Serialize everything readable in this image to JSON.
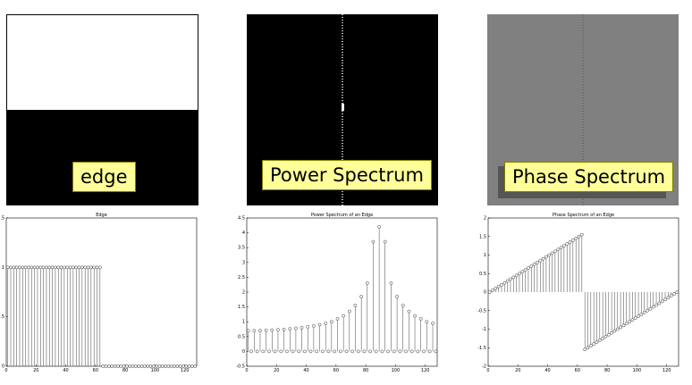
{
  "images": [
    {
      "label": "edge"
    },
    {
      "label": "Power Spectrum"
    },
    {
      "label": "Phase Spectrum"
    }
  ],
  "chart_data": [
    {
      "type": "stem",
      "title": "Edge",
      "xlim": [
        0,
        128
      ],
      "ylim": [
        0,
        1.5
      ],
      "xticks": [
        "0",
        "20",
        "40",
        "60",
        "80",
        "100",
        "120"
      ],
      "yticks": [
        "0",
        "0.5",
        "1",
        "1.5"
      ],
      "x_start": 1,
      "x_step": 2,
      "n": 64,
      "values": [
        1,
        1,
        1,
        1,
        1,
        1,
        1,
        1,
        1,
        1,
        1,
        1,
        1,
        1,
        1,
        1,
        1,
        1,
        1,
        1,
        1,
        1,
        1,
        1,
        1,
        1,
        1,
        1,
        1,
        1,
        1,
        1,
        0,
        0,
        0,
        0,
        0,
        0,
        0,
        0,
        0,
        0,
        0,
        0,
        0,
        0,
        0,
        0,
        0,
        0,
        0,
        0,
        0,
        0,
        0,
        0,
        0,
        0,
        0,
        0,
        0,
        0,
        0,
        0
      ]
    },
    {
      "type": "stem",
      "title": "Power Spectrum of an Edge",
      "xlim": [
        0,
        128
      ],
      "ylim": [
        -0.5,
        4.5
      ],
      "xticks": [
        "0",
        "20",
        "40",
        "60",
        "80",
        "100",
        "120"
      ],
      "yticks": [
        "-0.5",
        "0",
        "0.5",
        "1",
        "1.5",
        "2",
        "2.5",
        "3",
        "3.5",
        "4",
        "4.5"
      ],
      "x_start": 1,
      "x_step": 2,
      "n": 64,
      "values": [
        0.7,
        0,
        0.7,
        0,
        0.7,
        0,
        0.71,
        0,
        0.72,
        0,
        0.73,
        0,
        0.74,
        0,
        0.76,
        0,
        0.78,
        0,
        0.8,
        0,
        0.83,
        0,
        0.86,
        0,
        0.9,
        0,
        0.95,
        0,
        1.0,
        0,
        1.1,
        0,
        1.2,
        0,
        1.35,
        0,
        1.55,
        0,
        1.85,
        0,
        2.3,
        0,
        3.7,
        0,
        4.2,
        0,
        3.7,
        0,
        2.3,
        0,
        1.85,
        0,
        1.55,
        0,
        1.35,
        0,
        1.2,
        0,
        1.1,
        0,
        1.0,
        0,
        0.95,
        0
      ]
    },
    {
      "type": "stem",
      "title": "Phase Spectrum of an Edge",
      "xlim": [
        0,
        128
      ],
      "ylim": [
        -2,
        2
      ],
      "xticks": [
        "0",
        "20",
        "40",
        "60",
        "80",
        "100",
        "120"
      ],
      "yticks": [
        "-2",
        "-1.5",
        "-1",
        "-0.5",
        "0",
        "0.5",
        "1",
        "1.5",
        "2"
      ],
      "x_start": 1,
      "x_step": 2,
      "n": 64,
      "values": [
        0,
        0.05,
        0.1,
        0.15,
        0.2,
        0.25,
        0.3,
        0.35,
        0.4,
        0.45,
        0.5,
        0.55,
        0.6,
        0.65,
        0.7,
        0.75,
        0.8,
        0.85,
        0.9,
        0.95,
        1.0,
        1.05,
        1.1,
        1.15,
        1.2,
        1.25,
        1.3,
        1.35,
        1.4,
        1.45,
        1.5,
        1.55,
        -1.55,
        -1.5,
        -1.45,
        -1.4,
        -1.35,
        -1.3,
        -1.25,
        -1.2,
        -1.15,
        -1.1,
        -1.05,
        -1.0,
        -0.95,
        -0.9,
        -0.85,
        -0.8,
        -0.75,
        -0.7,
        -0.65,
        -0.6,
        -0.55,
        -0.5,
        -0.45,
        -0.4,
        -0.35,
        -0.3,
        -0.25,
        -0.2,
        -0.15,
        -0.1,
        -0.05,
        0
      ]
    }
  ]
}
